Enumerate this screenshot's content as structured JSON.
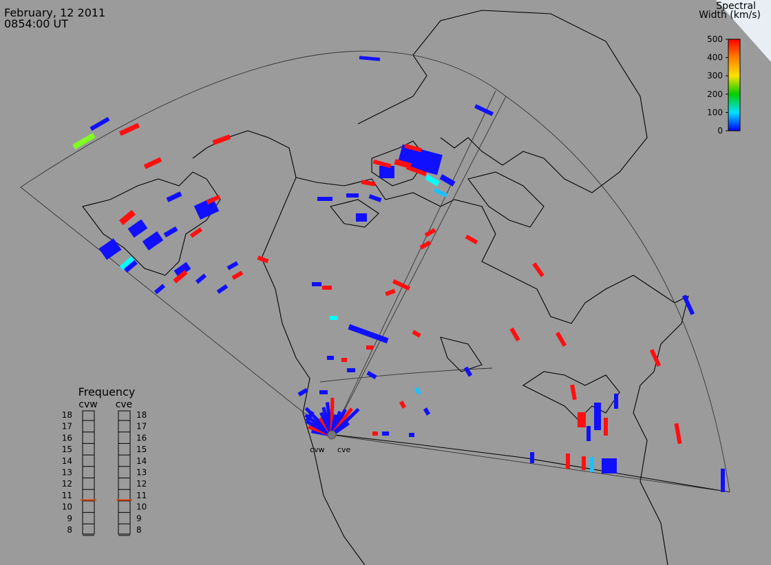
{
  "header": {
    "date": "February, 12 2011",
    "time": "0854:00 UT"
  },
  "colorbar": {
    "title": [
      "Spectral",
      "Width (km/s)"
    ],
    "lim": [
      0,
      500
    ],
    "ticks": [
      0,
      100,
      200,
      300,
      400,
      500
    ]
  },
  "frequency": {
    "title": "Frequency",
    "lim": [
      8,
      18
    ],
    "ticks": [
      8,
      9,
      10,
      11,
      12,
      13,
      14,
      15,
      16,
      17,
      18
    ],
    "radars": [
      {
        "name": "cvw",
        "value": 10.6
      },
      {
        "name": "cve",
        "value": 10.6
      }
    ]
  },
  "map": {
    "radar_labels": [
      "cvw",
      "cve"
    ]
  }
}
